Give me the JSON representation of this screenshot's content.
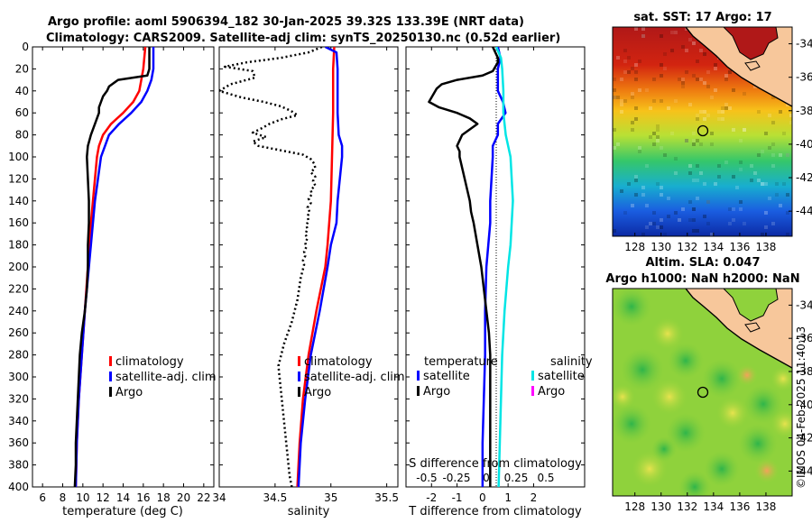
{
  "title": {
    "line1": "Argo profile: aoml 5906394_182 30-Jan-2025 39.32S 133.39E (NRT data)",
    "line2": "Climatology: CARS2009. Satellite-adj clim: synTS_20250130.nc (0.52d earlier)"
  },
  "credit": "©IMOS 04-Feb-2025 11:40:13",
  "colors": {
    "climatology": "#ff0000",
    "satellite": "#0000ff",
    "argo": "#000000",
    "sal_sat": "#00e5e5",
    "sal_argo": "#ff00ff",
    "land": "#f7c79b"
  },
  "chart_data": [
    {
      "type": "line",
      "id": "temperature",
      "xlabel": "temperature (deg C)",
      "xlim": [
        5,
        23
      ],
      "ylim": [
        0,
        400
      ],
      "y_reversed": true,
      "xticks": [
        6,
        8,
        10,
        12,
        14,
        16,
        18,
        20,
        22
      ],
      "yticks": [
        0,
        20,
        40,
        60,
        80,
        100,
        120,
        140,
        160,
        180,
        200,
        220,
        240,
        260,
        280,
        300,
        320,
        340,
        360,
        380,
        400
      ],
      "legend": [
        "climatology",
        "satellite-adj. clim",
        "Argo"
      ],
      "series": [
        {
          "name": "climatology",
          "depth": [
            0,
            20,
            40,
            50,
            60,
            70,
            80,
            90,
            100,
            120,
            140,
            160,
            200,
            240,
            280,
            320,
            360,
            400
          ],
          "values": [
            16.2,
            16.0,
            15.6,
            15.0,
            14.0,
            12.8,
            12.0,
            11.6,
            11.4,
            11.2,
            11.0,
            10.8,
            10.5,
            10.2,
            9.9,
            9.6,
            9.4,
            9.3
          ]
        },
        {
          "name": "satellite-adj. clim",
          "depth": [
            0,
            20,
            30,
            40,
            50,
            60,
            70,
            80,
            90,
            100,
            120,
            140,
            160,
            200,
            240,
            280,
            320,
            360,
            400
          ],
          "values": [
            17.0,
            17.0,
            16.8,
            16.4,
            15.8,
            14.8,
            13.6,
            12.6,
            12.2,
            11.8,
            11.5,
            11.2,
            11.0,
            10.6,
            10.2,
            9.9,
            9.6,
            9.4,
            9.3
          ]
        },
        {
          "name": "Argo",
          "depth": [
            0,
            20,
            26,
            30,
            36,
            40,
            45,
            50,
            55,
            60,
            70,
            80,
            90,
            100,
            120,
            140,
            160,
            180,
            200,
            220,
            240,
            260,
            280,
            300,
            320,
            340,
            360,
            380,
            400
          ],
          "values": [
            16.6,
            16.6,
            16.4,
            13.5,
            12.6,
            12.4,
            12.0,
            11.8,
            11.6,
            11.6,
            11.2,
            10.8,
            10.5,
            10.4,
            10.5,
            10.6,
            10.6,
            10.5,
            10.5,
            10.4,
            10.2,
            9.9,
            9.7,
            9.6,
            9.5,
            9.4,
            9.3,
            9.3,
            9.2
          ]
        }
      ]
    },
    {
      "type": "line",
      "id": "salinity",
      "xlabel": "salinity",
      "xlim": [
        34,
        35.6
      ],
      "ylim": [
        0,
        400
      ],
      "y_reversed": true,
      "xticks": [
        34,
        34.5,
        35,
        35.5
      ],
      "legend": [
        "climatology",
        "satellite-adj. clim",
        "Argo"
      ],
      "series": [
        {
          "name": "climatology",
          "depth": [
            0,
            20,
            60,
            100,
            140,
            180,
            200,
            240,
            280,
            320,
            360,
            400
          ],
          "values": [
            35.03,
            35.02,
            35.02,
            35.01,
            35.0,
            34.97,
            34.95,
            34.87,
            34.8,
            34.75,
            34.72,
            34.7
          ]
        },
        {
          "name": "satellite-adj. clim",
          "depth": [
            0,
            5,
            20,
            60,
            80,
            90,
            100,
            120,
            140,
            160,
            180,
            200,
            240,
            280,
            320,
            360,
            400
          ],
          "values": [
            34.95,
            35.05,
            35.06,
            35.06,
            35.07,
            35.1,
            35.1,
            35.08,
            35.06,
            35.05,
            35.0,
            34.97,
            34.9,
            34.82,
            34.77,
            34.73,
            34.71
          ]
        },
        {
          "name": "Argo",
          "depth": [
            0,
            5,
            10,
            14,
            18,
            22,
            28,
            34,
            40,
            46,
            50,
            54,
            58,
            62,
            66,
            70,
            74,
            78,
            82,
            86,
            90,
            94,
            98,
            102,
            106,
            110,
            114,
            118,
            122,
            126,
            130,
            134,
            138,
            142,
            146,
            150,
            154,
            158,
            162,
            166,
            170,
            174,
            178,
            182,
            186,
            190,
            194,
            198,
            210,
            230,
            250,
            270,
            290,
            310,
            330,
            350,
            370,
            390,
            400
          ],
          "values": [
            34.92,
            34.8,
            34.55,
            34.25,
            34.05,
            34.3,
            34.32,
            34.1,
            34.0,
            34.2,
            34.4,
            34.55,
            34.64,
            34.7,
            34.55,
            34.45,
            34.38,
            34.3,
            34.42,
            34.3,
            34.35,
            34.55,
            34.75,
            34.82,
            34.85,
            34.86,
            34.82,
            34.86,
            34.84,
            34.86,
            34.82,
            34.83,
            34.8,
            34.82,
            34.79,
            34.81,
            34.79,
            34.8,
            34.78,
            34.79,
            34.77,
            34.79,
            34.77,
            34.78,
            34.76,
            34.77,
            34.75,
            34.76,
            34.73,
            34.7,
            34.65,
            34.58,
            34.53,
            34.55,
            34.57,
            34.59,
            34.61,
            34.63,
            34.65
          ]
        }
      ]
    },
    {
      "type": "line",
      "id": "differences",
      "xlabel": "T difference from climatology",
      "xlabel_top": "S difference from climatology",
      "xlim": [
        -3,
        4
      ],
      "ylim": [
        0,
        400
      ],
      "y_reversed": true,
      "xticks": [
        -2,
        -1,
        0,
        1,
        2
      ],
      "xticks_top": [
        -0.5,
        -0.25,
        0,
        0.25,
        0.5
      ],
      "legend_groups": {
        "temperature": [
          "satellite",
          "Argo"
        ],
        "salinity": [
          "satellite",
          "Argo"
        ]
      },
      "series": [
        {
          "name": "temperature satellite",
          "depth": [
            0,
            10,
            20,
            30,
            40,
            50,
            60,
            70,
            80,
            90,
            100,
            120,
            140,
            160,
            200,
            240,
            280,
            320,
            360,
            400
          ],
          "values": [
            0.6,
            0.7,
            0.6,
            0.6,
            0.6,
            0.8,
            0.9,
            0.6,
            0.6,
            0.4,
            0.4,
            0.35,
            0.3,
            0.3,
            0.15,
            0.1,
            0.1,
            0.05,
            0.0,
            0.0
          ]
        },
        {
          "name": "temperature Argo",
          "depth": [
            0,
            5,
            10,
            14,
            18,
            22,
            26,
            30,
            34,
            38,
            42,
            46,
            50,
            55,
            60,
            65,
            70,
            75,
            80,
            85,
            90,
            95,
            100,
            110,
            120,
            130,
            140,
            150,
            160,
            180,
            200,
            220,
            240,
            260,
            280,
            300,
            320,
            340,
            360,
            380,
            400
          ],
          "values": [
            0.4,
            0.5,
            0.6,
            0.6,
            0.5,
            0.4,
            0.0,
            -1.0,
            -1.6,
            -1.8,
            -1.9,
            -2.0,
            -2.1,
            -1.7,
            -1.0,
            -0.5,
            -0.2,
            -0.5,
            -0.8,
            -0.9,
            -1.0,
            -0.9,
            -0.9,
            -0.8,
            -0.7,
            -0.6,
            -0.5,
            -0.45,
            -0.35,
            -0.2,
            -0.05,
            0.05,
            0.15,
            0.25,
            0.3,
            0.3,
            0.3,
            0.3,
            0.3,
            0.3,
            0.3
          ]
        },
        {
          "name": "salinity satellite",
          "depth": [
            0,
            10,
            20,
            40,
            60,
            80,
            100,
            140,
            180,
            200,
            240,
            280,
            320,
            360,
            400
          ],
          "values": [
            0.0,
            0.04,
            0.05,
            0.06,
            0.06,
            0.08,
            0.12,
            0.14,
            0.12,
            0.1,
            0.07,
            0.05,
            0.04,
            0.03,
            0.02
          ]
        }
      ]
    },
    {
      "type": "heatmap",
      "id": "sst_map",
      "title": "sat. SST: 17 Argo: 17",
      "xticks": [
        128,
        130,
        132,
        134,
        136,
        138
      ],
      "yticks": [
        -34,
        -36,
        -38,
        -40,
        -42,
        -44
      ],
      "xlim": [
        126.3,
        140
      ],
      "ylim": [
        -45.5,
        -33
      ]
    },
    {
      "type": "heatmap",
      "id": "sla_map",
      "title_line1": "Altim. SLA: 0.047",
      "title_line2": "Argo h1000: NaN h2000: NaN",
      "xticks": [
        128,
        130,
        132,
        134,
        136,
        138
      ],
      "yticks": [
        -34,
        -36,
        -38,
        -40,
        -42,
        -44
      ],
      "xlim": [
        126.3,
        140
      ],
      "ylim": [
        -45.5,
        -33
      ]
    }
  ]
}
